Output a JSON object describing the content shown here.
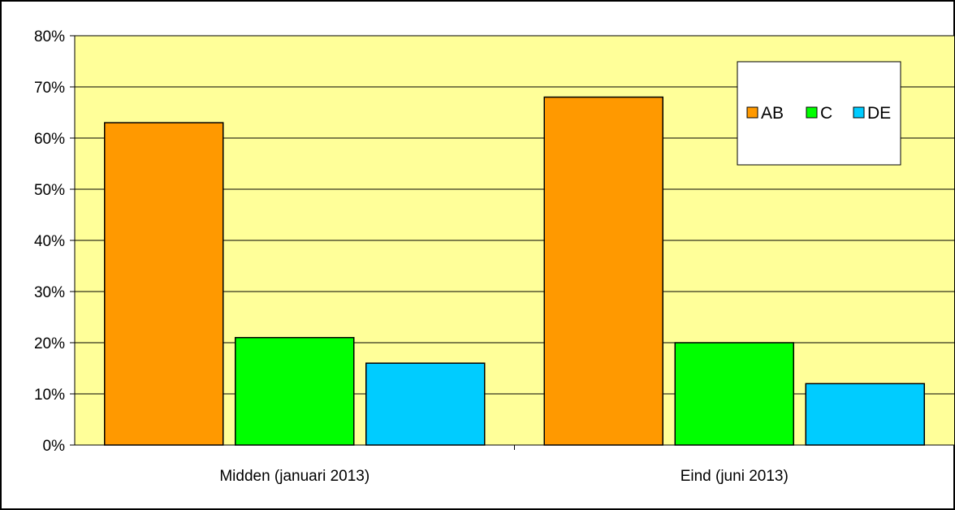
{
  "chart_data": {
    "type": "bar",
    "categories": [
      "Midden (januari 2013)",
      "Eind (juni 2013)"
    ],
    "series": [
      {
        "name": "AB",
        "values": [
          63,
          68
        ],
        "color": "#FF9900"
      },
      {
        "name": "C",
        "values": [
          21,
          20
        ],
        "color": "#00FF00"
      },
      {
        "name": "DE",
        "values": [
          16,
          12
        ],
        "color": "#00CCFF"
      }
    ],
    "ylim": [
      0,
      80
    ],
    "yticks": [
      "0%",
      "10%",
      "20%",
      "30%",
      "40%",
      "50%",
      "60%",
      "70%",
      "80%"
    ],
    "grid": true,
    "legend_position": "top-right",
    "plot_background": "#FFFF99"
  }
}
